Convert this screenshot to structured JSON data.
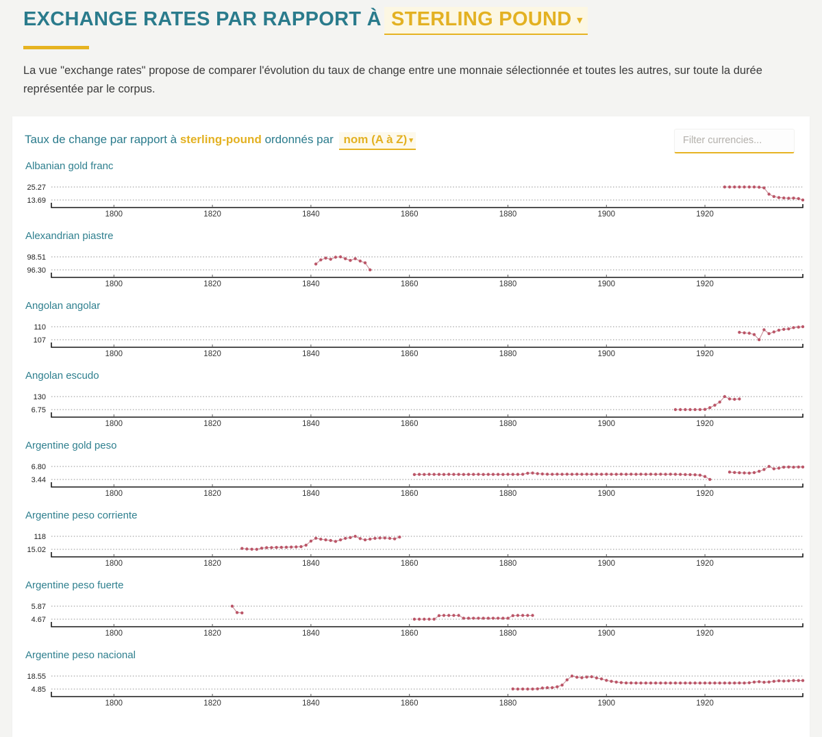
{
  "header": {
    "title_prefix": "EXCHANGE RATES PAR RAPPORT À",
    "selected_currency": "STERLING POUND",
    "description": "La vue \"exchange rates\" propose de comparer l'évolution du taux de change entre une monnaie sélectionnée et toutes les autres, sur toute la durée représentée par le corpus."
  },
  "card": {
    "title_prefix": "Taux de change par rapport à",
    "currency": "sterling-pound",
    "title_middle": "ordonnés par",
    "sort_label": "nom (A à Z)",
    "filter_placeholder": "Filter currencies..."
  },
  "icons": {
    "caret_down": "▾"
  },
  "colors": {
    "accent_teal": "#2a7b8c",
    "accent_gold": "#e6b321",
    "series_dot": "#bb5668",
    "series_line": "#c98e98"
  },
  "chart_config": {
    "type": "line",
    "x_ticks": [
      1800,
      1820,
      1840,
      1860,
      1880,
      1900,
      1920
    ],
    "x_range_approx": [
      1787,
      1940
    ],
    "grid": "dotted",
    "y_ticks_per_chart": [
      "series max",
      "series min"
    ]
  },
  "chart_data": [
    {
      "type": "line",
      "title": "Albanian gold franc",
      "ylim": [
        13.69,
        25.27
      ],
      "y_tick_labels": [
        "25.27",
        "13.69"
      ],
      "points": [
        [
          1924,
          25.27
        ],
        [
          1925,
          25.27
        ],
        [
          1926,
          25.27
        ],
        [
          1927,
          25.27
        ],
        [
          1928,
          25.27
        ],
        [
          1929,
          25.27
        ],
        [
          1930,
          25.27
        ],
        [
          1931,
          25.1
        ],
        [
          1932,
          24.5
        ],
        [
          1933,
          18.9
        ],
        [
          1934,
          16.8
        ],
        [
          1935,
          15.9
        ],
        [
          1936,
          15.5
        ],
        [
          1937,
          15.3
        ],
        [
          1938,
          15.4
        ],
        [
          1939,
          15.0
        ],
        [
          1940,
          13.69
        ]
      ]
    },
    {
      "type": "line",
      "title": "Alexandrian piastre",
      "ylim": [
        96.3,
        98.51
      ],
      "y_tick_labels": [
        "98.51",
        "96.30"
      ],
      "points": [
        [
          1841,
          97.3
        ],
        [
          1842,
          98.0
        ],
        [
          1843,
          98.3
        ],
        [
          1844,
          98.1
        ],
        [
          1845,
          98.45
        ],
        [
          1846,
          98.51
        ],
        [
          1847,
          98.2
        ],
        [
          1848,
          97.9
        ],
        [
          1849,
          98.2
        ],
        [
          1850,
          97.8
        ],
        [
          1851,
          97.5
        ],
        [
          1852,
          96.3
        ]
      ]
    },
    {
      "type": "line",
      "title": "Angolan angolar",
      "ylim": [
        107,
        110
      ],
      "y_tick_labels": [
        "110",
        "107"
      ],
      "points": [
        [
          1927,
          108.7
        ],
        [
          1928,
          108.6
        ],
        [
          1929,
          108.5
        ],
        [
          1930,
          108.2
        ],
        [
          1931,
          107.0
        ],
        [
          1932,
          109.3
        ],
        [
          1933,
          108.4
        ],
        [
          1934,
          108.8
        ],
        [
          1935,
          109.2
        ],
        [
          1936,
          109.4
        ],
        [
          1937,
          109.5
        ],
        [
          1938,
          109.8
        ],
        [
          1939,
          109.9
        ],
        [
          1940,
          110.0
        ]
      ]
    },
    {
      "type": "line",
      "title": "Angolan escudo",
      "ylim": [
        6.75,
        130
      ],
      "y_tick_labels": [
        "130",
        "6.75"
      ],
      "points": [
        [
          1914,
          6.9
        ],
        [
          1915,
          6.8
        ],
        [
          1916,
          6.75
        ],
        [
          1917,
          6.8
        ],
        [
          1918,
          7.0
        ],
        [
          1919,
          7.5
        ],
        [
          1920,
          9.0
        ],
        [
          1921,
          25
        ],
        [
          1922,
          48
        ],
        [
          1923,
          78
        ],
        [
          1924,
          130
        ],
        [
          1925,
          108
        ],
        [
          1926,
          105
        ],
        [
          1927,
          107
        ]
      ]
    },
    {
      "type": "line",
      "title": "Argentine gold peso",
      "ylim": [
        3.44,
        6.8
      ],
      "y_tick_labels": [
        "6.80",
        "3.44"
      ],
      "points": [
        [
          1861,
          4.72
        ],
        [
          1862,
          4.75
        ],
        [
          1863,
          4.73
        ],
        [
          1864,
          4.76
        ],
        [
          1865,
          4.74
        ],
        [
          1866,
          4.75
        ],
        [
          1867,
          4.73
        ],
        [
          1868,
          4.76
        ],
        [
          1869,
          4.74
        ],
        [
          1870,
          4.75
        ],
        [
          1871,
          4.73
        ],
        [
          1872,
          4.75
        ],
        [
          1873,
          4.74
        ],
        [
          1874,
          4.76
        ],
        [
          1875,
          4.73
        ],
        [
          1876,
          4.75
        ],
        [
          1877,
          4.74
        ],
        [
          1878,
          4.75
        ],
        [
          1879,
          4.73
        ],
        [
          1880,
          4.76
        ],
        [
          1881,
          4.74
        ],
        [
          1882,
          4.75
        ],
        [
          1883,
          4.78
        ],
        [
          1884,
          5.05
        ],
        [
          1885,
          5.1
        ],
        [
          1886,
          4.95
        ],
        [
          1887,
          4.85
        ],
        [
          1888,
          4.8
        ],
        [
          1889,
          4.78
        ],
        [
          1890,
          4.8
        ],
        [
          1891,
          4.78
        ],
        [
          1892,
          4.8
        ],
        [
          1893,
          4.78
        ],
        [
          1894,
          4.8
        ],
        [
          1895,
          4.78
        ],
        [
          1896,
          4.8
        ],
        [
          1897,
          4.78
        ],
        [
          1898,
          4.8
        ],
        [
          1899,
          4.78
        ],
        [
          1900,
          4.8
        ],
        [
          1901,
          4.78
        ],
        [
          1902,
          4.78
        ],
        [
          1903,
          4.8
        ],
        [
          1904,
          4.78
        ],
        [
          1905,
          4.8
        ],
        [
          1906,
          4.78
        ],
        [
          1907,
          4.8
        ],
        [
          1908,
          4.78
        ],
        [
          1909,
          4.8
        ],
        [
          1910,
          4.78
        ],
        [
          1911,
          4.8
        ],
        [
          1912,
          4.78
        ],
        [
          1913,
          4.8
        ],
        [
          1914,
          4.78
        ],
        [
          1915,
          4.75
        ],
        [
          1916,
          4.72
        ],
        [
          1917,
          4.7
        ],
        [
          1918,
          4.65
        ],
        [
          1919,
          4.55
        ],
        [
          1920,
          4.2
        ],
        [
          1921,
          3.44
        ],
        null,
        [
          1925,
          5.35
        ],
        [
          1926,
          5.25
        ],
        [
          1927,
          5.18
        ],
        [
          1928,
          5.12
        ],
        [
          1929,
          5.08
        ],
        [
          1930,
          5.2
        ],
        [
          1931,
          5.55
        ],
        [
          1932,
          6.0
        ],
        [
          1933,
          6.8
        ],
        [
          1934,
          6.2
        ],
        [
          1935,
          6.35
        ],
        [
          1936,
          6.6
        ],
        [
          1937,
          6.65
        ],
        [
          1938,
          6.6
        ],
        [
          1939,
          6.65
        ],
        [
          1940,
          6.65
        ]
      ]
    },
    {
      "type": "line",
      "title": "Argentine peso corriente",
      "ylim": [
        15.02,
        118
      ],
      "y_tick_labels": [
        "118",
        "15.02"
      ],
      "points": [
        [
          1826,
          22
        ],
        [
          1827,
          18
        ],
        [
          1828,
          16
        ],
        [
          1829,
          15.02
        ],
        [
          1830,
          24
        ],
        [
          1831,
          28
        ],
        [
          1832,
          29
        ],
        [
          1833,
          30
        ],
        [
          1834,
          31
        ],
        [
          1835,
          32
        ],
        [
          1836,
          33
        ],
        [
          1837,
          34
        ],
        [
          1838,
          36
        ],
        [
          1839,
          48
        ],
        [
          1840,
          80
        ],
        [
          1841,
          103
        ],
        [
          1842,
          95
        ],
        [
          1843,
          90
        ],
        [
          1844,
          85
        ],
        [
          1845,
          78
        ],
        [
          1846,
          90
        ],
        [
          1847,
          102
        ],
        [
          1848,
          108
        ],
        [
          1849,
          118
        ],
        [
          1850,
          100
        ],
        [
          1851,
          90
        ],
        [
          1852,
          96
        ],
        [
          1853,
          102
        ],
        [
          1854,
          105
        ],
        [
          1855,
          105
        ],
        [
          1856,
          102
        ],
        [
          1857,
          98
        ],
        [
          1858,
          112
        ]
      ]
    },
    {
      "type": "line",
      "title": "Argentine peso fuerte",
      "ylim": [
        4.67,
        5.87
      ],
      "y_tick_labels": [
        "5.87",
        "4.67"
      ],
      "points": [
        [
          1824,
          5.87
        ],
        [
          1825,
          5.28
        ],
        [
          1826,
          5.25
        ],
        null,
        [
          1861,
          4.67
        ],
        [
          1862,
          4.67
        ],
        [
          1863,
          4.67
        ],
        [
          1864,
          4.67
        ],
        [
          1865,
          4.67
        ],
        [
          1866,
          5.0
        ],
        [
          1867,
          5.02
        ],
        [
          1868,
          5.02
        ],
        [
          1869,
          5.02
        ],
        [
          1870,
          5.02
        ],
        [
          1871,
          4.76
        ],
        [
          1872,
          4.76
        ],
        [
          1873,
          4.76
        ],
        [
          1874,
          4.76
        ],
        [
          1875,
          4.76
        ],
        [
          1876,
          4.76
        ],
        [
          1877,
          4.76
        ],
        [
          1878,
          4.76
        ],
        [
          1879,
          4.76
        ],
        [
          1880,
          4.76
        ],
        [
          1881,
          5.0
        ],
        [
          1882,
          5.02
        ],
        [
          1883,
          5.02
        ],
        [
          1884,
          5.02
        ],
        [
          1885,
          5.02
        ]
      ]
    },
    {
      "type": "line",
      "title": "Argentine peso nacional",
      "ylim": [
        4.85,
        18.55
      ],
      "y_tick_labels": [
        "18.55",
        "4.85"
      ],
      "points": [
        [
          1881,
          5.0
        ],
        [
          1882,
          4.85
        ],
        [
          1883,
          4.9
        ],
        [
          1884,
          4.85
        ],
        [
          1885,
          4.95
        ],
        [
          1886,
          5.1
        ],
        [
          1887,
          5.9
        ],
        [
          1888,
          6.3
        ],
        [
          1889,
          6.4
        ],
        [
          1890,
          7.2
        ],
        [
          1891,
          9.0
        ],
        [
          1892,
          14.5
        ],
        [
          1893,
          18.55
        ],
        [
          1894,
          17.3
        ],
        [
          1895,
          16.8
        ],
        [
          1896,
          17.5
        ],
        [
          1897,
          17.8
        ],
        [
          1898,
          16.5
        ],
        [
          1899,
          15.5
        ],
        [
          1900,
          14.0
        ],
        [
          1901,
          13.0
        ],
        [
          1902,
          12.2
        ],
        [
          1903,
          11.6
        ],
        [
          1904,
          11.3
        ],
        [
          1905,
          11.3
        ],
        [
          1906,
          11.2
        ],
        [
          1907,
          11.2
        ],
        [
          1908,
          11.2
        ],
        [
          1909,
          11.2
        ],
        [
          1910,
          11.2
        ],
        [
          1911,
          11.2
        ],
        [
          1912,
          11.2
        ],
        [
          1913,
          11.2
        ],
        [
          1914,
          11.2
        ],
        [
          1915,
          11.2
        ],
        [
          1916,
          11.2
        ],
        [
          1917,
          11.2
        ],
        [
          1918,
          11.2
        ],
        [
          1919,
          11.2
        ],
        [
          1920,
          11.2
        ],
        [
          1921,
          11.2
        ],
        [
          1922,
          11.2
        ],
        [
          1923,
          11.2
        ],
        [
          1924,
          11.2
        ],
        [
          1925,
          11.2
        ],
        [
          1926,
          11.2
        ],
        [
          1927,
          11.3
        ],
        [
          1928,
          11.2
        ],
        [
          1929,
          11.5
        ],
        [
          1930,
          12.2
        ],
        [
          1931,
          12.6
        ],
        [
          1932,
          12.0
        ],
        [
          1933,
          12.3
        ],
        [
          1934,
          13.0
        ],
        [
          1935,
          13.6
        ],
        [
          1936,
          13.3
        ],
        [
          1937,
          13.5
        ],
        [
          1938,
          13.8
        ],
        [
          1939,
          13.8
        ],
        [
          1940,
          13.8
        ]
      ]
    }
  ]
}
